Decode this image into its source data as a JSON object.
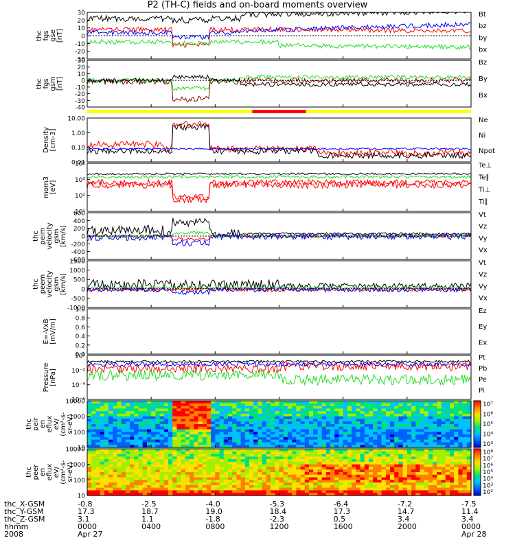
{
  "title": "P2 (TH-C) fields and on-board moments overview",
  "colors": {
    "black": "#000000",
    "red": "#ff0000",
    "green": "#22dd22",
    "blue": "#0000ff",
    "darkred": "#8b0000",
    "yellow": "#ffff00"
  },
  "chart_data": [
    {
      "type": "line",
      "ylabel": [
        "thc",
        "fgs",
        "gse",
        "[nT]"
      ],
      "yticks": [
        "30",
        "20",
        "10",
        "0",
        "-10",
        "-20",
        "-30"
      ],
      "ylim": [
        -30,
        30
      ],
      "series": [
        {
          "name": "Bt",
          "color": "#000000"
        },
        {
          "name": "bz",
          "color": "#ff0000"
        },
        {
          "name": "by",
          "color": "#22dd22"
        },
        {
          "name": "bx",
          "color": "#0000ff"
        }
      ]
    },
    {
      "type": "line",
      "ylabel": [
        "thc",
        "fgs",
        "gsm",
        "[nT]"
      ],
      "yticks": [
        "30",
        "20",
        "10",
        "0",
        "-10",
        "-20",
        "-30",
        "-40"
      ],
      "ylim": [
        -40,
        30
      ],
      "series": [
        {
          "name": "Bz",
          "color": "#8b0000"
        },
        {
          "name": "By",
          "color": "#22dd22"
        },
        {
          "name": "Bx",
          "color": "#000000"
        }
      ]
    },
    {
      "type": "bar",
      "name": "mode-bar",
      "segments": [
        {
          "from": 0.0,
          "to": 0.43,
          "color": "#ffff00"
        },
        {
          "from": 0.43,
          "to": 0.57,
          "color": "#ff0000"
        },
        {
          "from": 0.57,
          "to": 1.0,
          "color": "#ffff00"
        }
      ]
    },
    {
      "type": "line",
      "ylabel": [
        "Density",
        "[cm-3]"
      ],
      "yticks": [
        "10.00",
        "1.00",
        "0.10",
        "0.01"
      ],
      "log": true,
      "series": [
        {
          "name": "Ne",
          "color": "#ff0000"
        },
        {
          "name": "Ni",
          "color": "#000000"
        },
        {
          "name": "Npot",
          "color": "#0000ff"
        }
      ]
    },
    {
      "type": "line",
      "ylabel": [
        "mom3",
        "[eV]"
      ],
      "yticks": [
        "10⁴",
        "10³",
        "10²",
        "10¹"
      ],
      "log": true,
      "series": [
        {
          "name": "Te⊥",
          "color": "#ff0000"
        },
        {
          "name": "Te∥",
          "color": "#000000"
        },
        {
          "name": "Ti⊥",
          "color": "#ff0000"
        },
        {
          "name": "Ti∥",
          "color": "#22dd22"
        }
      ]
    },
    {
      "type": "line",
      "ylabel": [
        "thc",
        "peim",
        "velocity",
        "gsm",
        "[km/s]"
      ],
      "yticks": [
        "600",
        "400",
        "200",
        "0",
        "-200",
        "-400",
        "-600"
      ],
      "ylim": [
        -600,
        600
      ],
      "series": [
        {
          "name": "Vt",
          "color": "#000000"
        },
        {
          "name": "Vz",
          "color": "#ff0000"
        },
        {
          "name": "Vy",
          "color": "#22dd22"
        },
        {
          "name": "Vx",
          "color": "#0000ff"
        }
      ]
    },
    {
      "type": "line",
      "ylabel": [
        "thc",
        "peem",
        "velocity",
        "gsm",
        "[km/s]"
      ],
      "yticks": [
        "1500",
        "1000",
        "500",
        "0",
        "-500",
        "-1000"
      ],
      "ylim": [
        -1000,
        1500
      ],
      "series": [
        {
          "name": "Vt",
          "color": "#000000"
        },
        {
          "name": "Vz",
          "color": "#ff0000"
        },
        {
          "name": "Vy",
          "color": "#22dd22"
        },
        {
          "name": "Vx",
          "color": "#0000ff"
        }
      ]
    },
    {
      "type": "line",
      "ylabel": [
        "E=-VxB",
        "[mV/m]"
      ],
      "yticks": [
        "1.0",
        "0.8",
        "0.6",
        "0.4",
        "0.2",
        "0.0"
      ],
      "ylim": [
        0,
        1
      ],
      "series": [
        {
          "name": "Ez",
          "color": "#ff0000"
        },
        {
          "name": "Ey",
          "color": "#22dd22"
        },
        {
          "name": "Ex",
          "color": "#0000ff"
        }
      ]
    },
    {
      "type": "line",
      "ylabel": [
        "Pressure",
        "[nPa]"
      ],
      "yticks": [
        "10⁰",
        "10⁻²",
        "10⁻⁴",
        "10⁻⁶"
      ],
      "log": true,
      "series": [
        {
          "name": "Pt",
          "color": "#000000"
        },
        {
          "name": "Pb",
          "color": "#ff0000"
        },
        {
          "name": "Pe",
          "color": "#22dd22"
        },
        {
          "name": "Pi",
          "color": "#0000ff"
        }
      ]
    },
    {
      "type": "heatmap",
      "ylabel": [
        "thc",
        "peir",
        "en",
        "eflux",
        "eV/",
        "(cm²-s-",
        "sr-eV)"
      ],
      "yticks": [
        "10000",
        "1000",
        "100",
        "10"
      ],
      "colorbar": [
        "10⁷",
        "10⁶",
        "10⁵",
        "10⁴",
        "10³"
      ]
    },
    {
      "type": "heatmap",
      "ylabel": [
        "thc",
        "peer",
        "en",
        "eflux",
        "eV/",
        "(cm²-s-",
        "sr-eV)"
      ],
      "yticks": [
        "10000",
        "1000",
        "100",
        "10"
      ],
      "colorbar": [
        "10⁸",
        "10⁷",
        "10⁶",
        "10⁵",
        "10⁴",
        "10³",
        "10²"
      ]
    }
  ],
  "ephemeris": {
    "labels": [
      "thc_X-GSM",
      "thc_Y-GSM",
      "thc_Z-GSM",
      "hhmm",
      "2008"
    ],
    "columns": [
      {
        "x": "-0.8",
        "y": "17.3",
        "z": "3.1",
        "hhmm": "0000",
        "date": "Apr 27"
      },
      {
        "x": "-2.5",
        "y": "18.7",
        "z": "1.1",
        "hhmm": "0400",
        "date": ""
      },
      {
        "x": "-4.0",
        "y": "19.0",
        "z": "-1.8",
        "hhmm": "0800",
        "date": ""
      },
      {
        "x": "-5.3",
        "y": "18.4",
        "z": "-2.3",
        "hhmm": "1200",
        "date": ""
      },
      {
        "x": "-6.4",
        "y": "17.3",
        "z": "0.5",
        "hhmm": "1600",
        "date": ""
      },
      {
        "x": "-7.2",
        "y": "14.7",
        "z": "3.4",
        "hhmm": "2000",
        "date": ""
      },
      {
        "x": "-7.5",
        "y": "11.4",
        "z": "3.4",
        "hhmm": "0000",
        "date": "Apr 28"
      }
    ]
  }
}
